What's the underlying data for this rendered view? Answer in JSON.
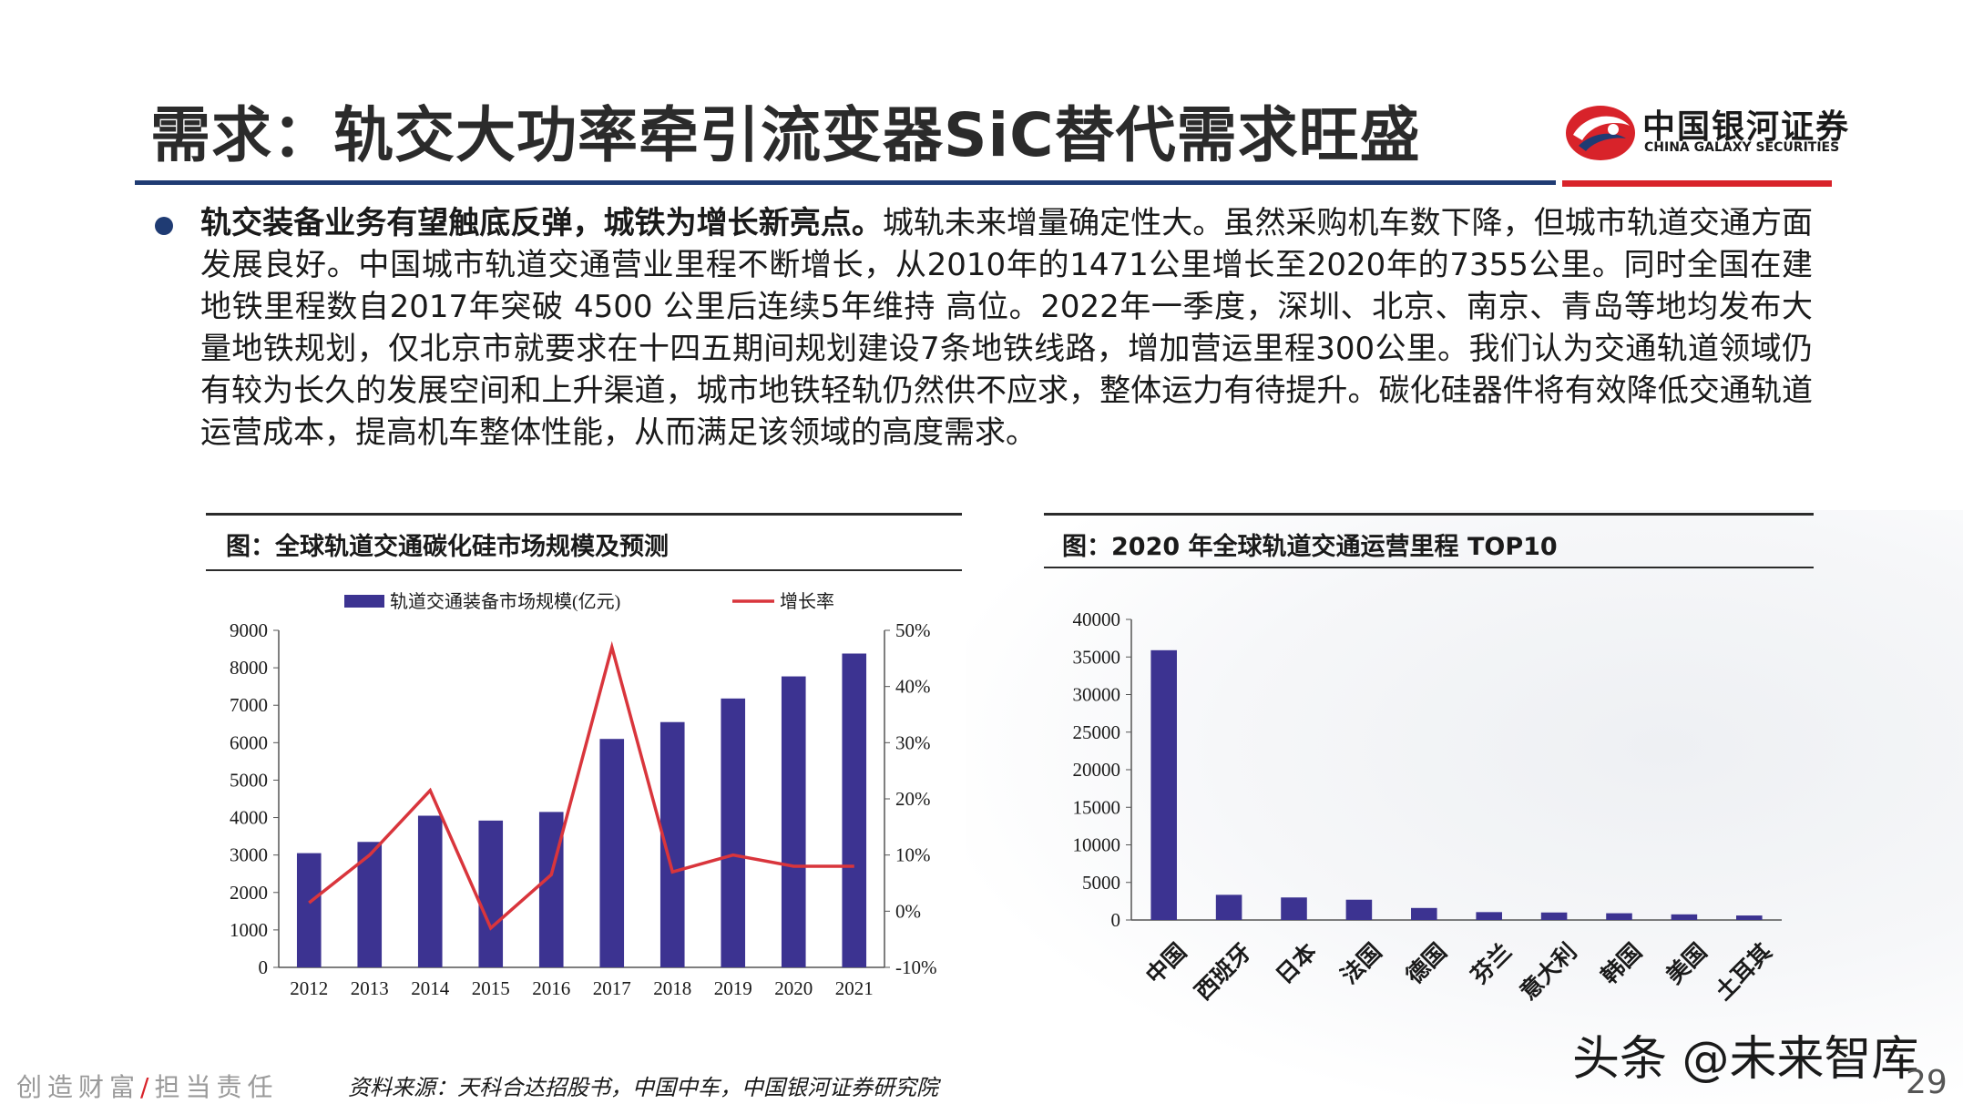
{
  "slide": {
    "title": "需求：轨交大功率牵引流变器SiC替代需求旺盛",
    "logo_cn": "中国银河证券",
    "logo_en": "CHINA GALAXY SECURITIES",
    "bullet_bold": "轨交装备业务有望触底反弹，城铁为增长新亮点。",
    "bullet_text": "城轨未来增量确定性大。虽然采购机车数下降，但城市轨道交通方面发展良好。中国城市轨道交通营业里程不断增长，从2010年的1471公里增长至2020年的7355公里。同时全国在建地铁里程数自2017年突破 4500 公里后连续5年维持 高位。2022年一季度，深圳、北京、南京、青岛等地均发布大量地铁规划，仅北京市就要求在十四五期间规划建设7条地铁线路，增加营运里程300公里。我们认为交通轨道领域仍有较为长久的发展空间和上升渠道，城市地铁轻轨仍然供不应求，整体运力有待提升。碳化硅器件将有效降低交通轨道运营成本，提高机车整体性能，从而满足该领域的高度需求。",
    "footer_left_a": "创造财富",
    "footer_slash": "/",
    "footer_left_b": "担当责任",
    "footer_source": "资料来源：天科合达招股书，中国中车，中国银河证券研究院",
    "watermark": "头条 @未来智库",
    "page_number": "29",
    "colors": {
      "bar": "#3c3391",
      "line": "#d9353c",
      "brand_red": "#d8232a",
      "brand_navy": "#1f3b73"
    }
  },
  "chart_data": [
    {
      "type": "bar+line",
      "title": "图：全球轨道交通碳化硅市场规模及预测",
      "categories": [
        "2012",
        "2013",
        "2014",
        "2015",
        "2016",
        "2017",
        "2018",
        "2019",
        "2020",
        "2021"
      ],
      "series": [
        {
          "name": "轨道交通装备市场规模(亿元)",
          "type": "bar",
          "axis": "left",
          "values": [
            3050,
            3350,
            4050,
            3920,
            4150,
            6100,
            6550,
            7180,
            7770,
            8380
          ]
        },
        {
          "name": "增长率",
          "type": "line",
          "axis": "right",
          "values": [
            0.015,
            0.1,
            0.215,
            -0.03,
            0.065,
            0.47,
            0.07,
            0.1,
            0.08,
            0.08
          ]
        }
      ],
      "ylim_left": [
        0,
        9000
      ],
      "yticks_left": [
        "0",
        "1000",
        "2000",
        "3000",
        "4000",
        "5000",
        "6000",
        "7000",
        "8000",
        "9000"
      ],
      "ylim_right": [
        -0.1,
        0.5
      ],
      "yticks_right": [
        "-10%",
        "0%",
        "10%",
        "20%",
        "30%",
        "40%",
        "50%"
      ],
      "legend_position": "top",
      "grid": false
    },
    {
      "type": "bar",
      "title": "图：2020 年全球轨道交通运营里程 TOP10",
      "categories": [
        "中国",
        "西班牙",
        "日本",
        "法国",
        "德国",
        "芬兰",
        "意大利",
        "韩国",
        "美国",
        "土耳其"
      ],
      "values": [
        35900,
        3350,
        3000,
        2700,
        1600,
        1050,
        1000,
        900,
        750,
        600
      ],
      "ylim": [
        0,
        40000
      ],
      "yticks": [
        "0",
        "5000",
        "10000",
        "15000",
        "20000",
        "25000",
        "30000",
        "35000",
        "40000"
      ],
      "grid": false
    }
  ]
}
